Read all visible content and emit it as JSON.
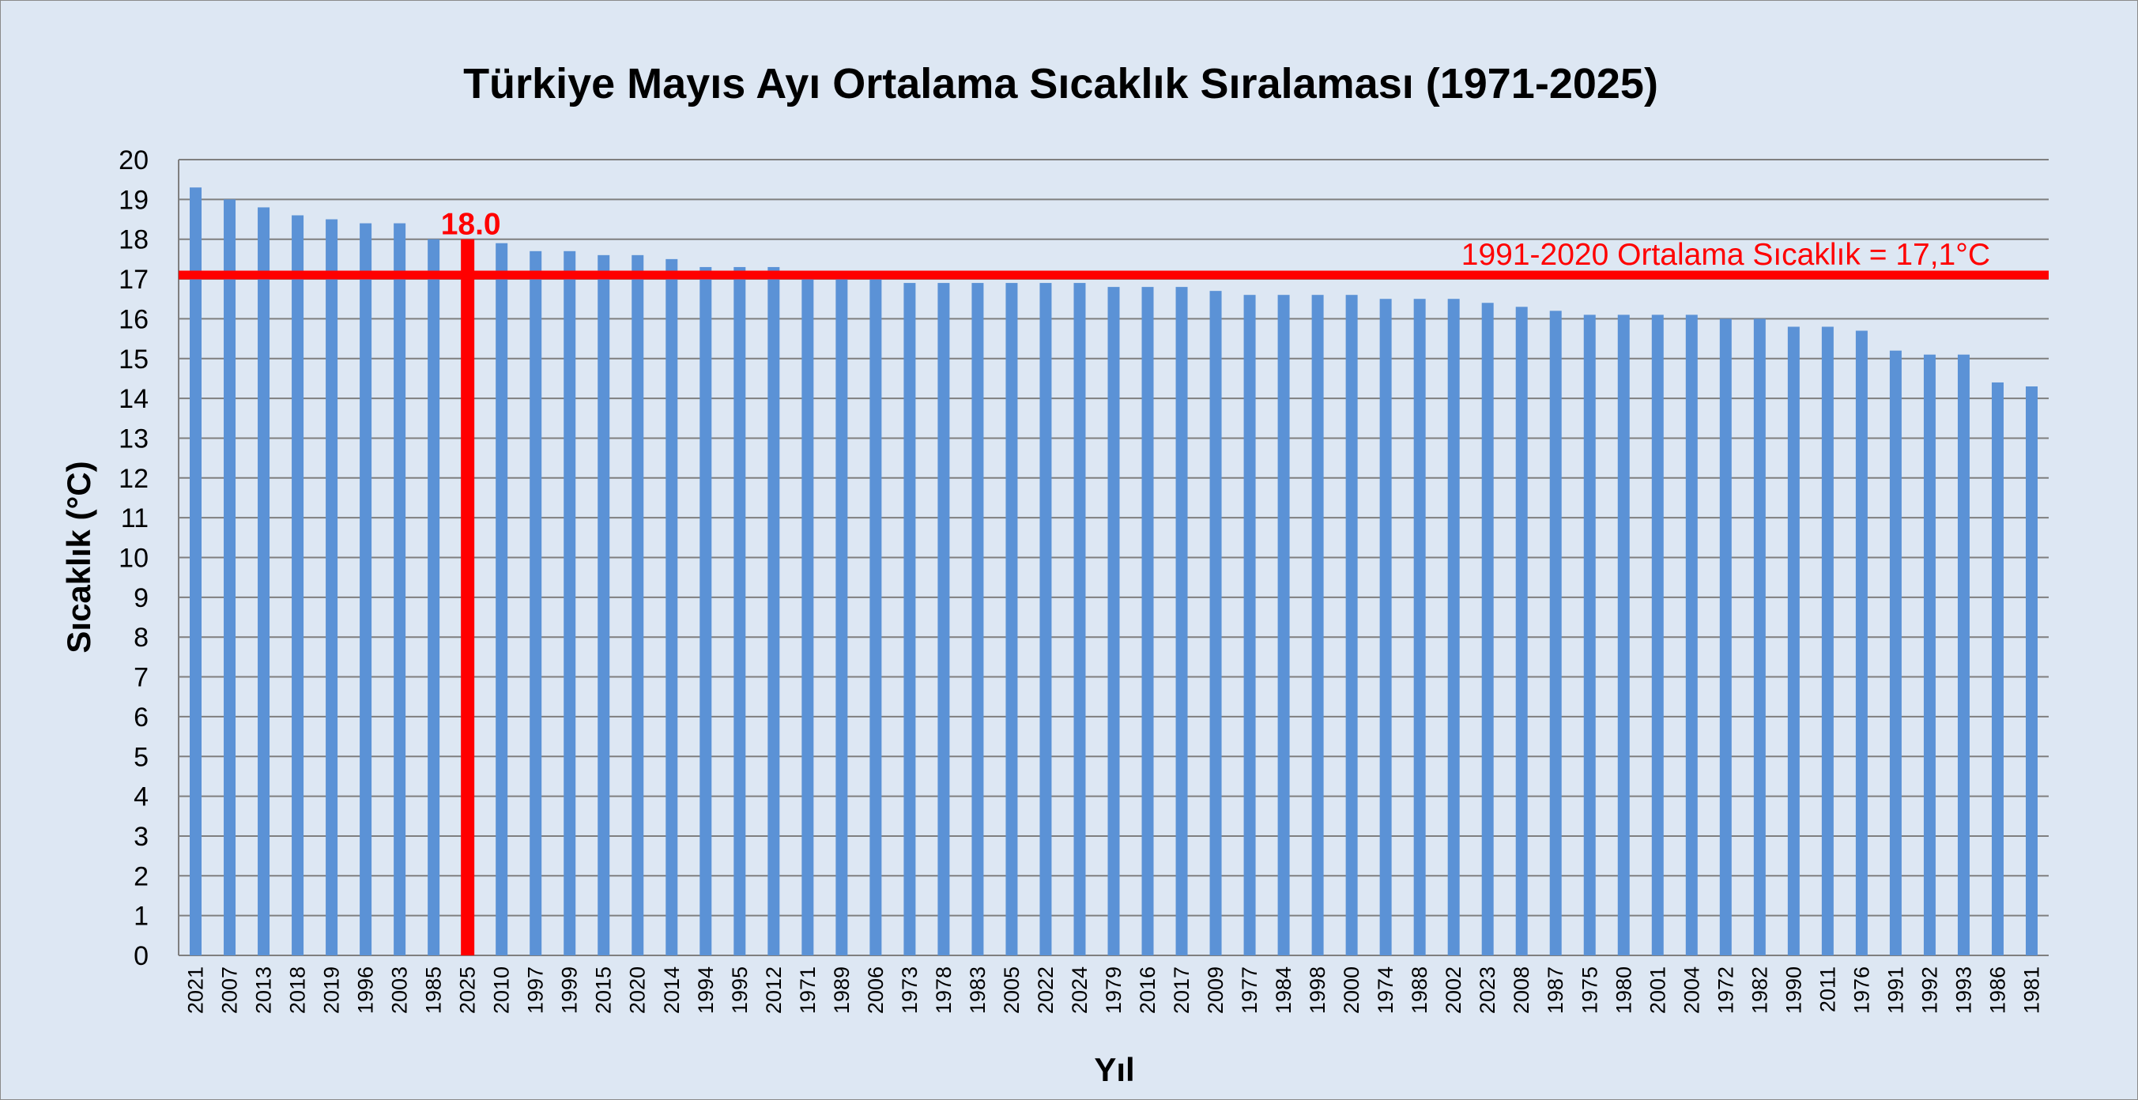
{
  "chart_data": {
    "type": "bar",
    "title": "Türkiye Mayıs Ayı Ortalama Sıcaklık Sıralaması (1971-2025)",
    "xlabel": "Yıl",
    "ylabel": "Sıcaklık (°C)",
    "ylim": [
      0,
      20
    ],
    "yticks": [
      0,
      1,
      2,
      3,
      4,
      5,
      6,
      7,
      8,
      9,
      10,
      11,
      12,
      13,
      14,
      15,
      16,
      17,
      18,
      19,
      20
    ],
    "grid": true,
    "legend": "none",
    "categories": [
      "2021",
      "2007",
      "2013",
      "2018",
      "2019",
      "1996",
      "2003",
      "1985",
      "2025",
      "2010",
      "1997",
      "1999",
      "2015",
      "2020",
      "2014",
      "1994",
      "1995",
      "2012",
      "1971",
      "1989",
      "2006",
      "1973",
      "1978",
      "1983",
      "2005",
      "2022",
      "2024",
      "1979",
      "2016",
      "2017",
      "2009",
      "1977",
      "1984",
      "1998",
      "2000",
      "1974",
      "1988",
      "2002",
      "2023",
      "2008",
      "1987",
      "1975",
      "1980",
      "2001",
      "2004",
      "1972",
      "1982",
      "1990",
      "2011",
      "1976",
      "1991",
      "1992",
      "1993",
      "1986",
      "1981"
    ],
    "values": [
      19.3,
      19.0,
      18.8,
      18.6,
      18.5,
      18.4,
      18.4,
      18.0,
      18.0,
      17.9,
      17.7,
      17.7,
      17.6,
      17.6,
      17.5,
      17.3,
      17.3,
      17.3,
      17.1,
      17.0,
      17.0,
      16.9,
      16.9,
      16.9,
      16.9,
      16.9,
      16.9,
      16.8,
      16.8,
      16.8,
      16.7,
      16.6,
      16.6,
      16.6,
      16.6,
      16.5,
      16.5,
      16.5,
      16.4,
      16.3,
      16.2,
      16.1,
      16.1,
      16.1,
      16.1,
      16.0,
      16.0,
      15.8,
      15.8,
      15.7,
      15.2,
      15.1,
      15.1,
      14.4,
      14.3
    ],
    "bar_color": "#5b92d6",
    "highlight": {
      "category": "2025",
      "value": 18.0,
      "label": "18.0",
      "color": "#ff0000"
    },
    "reference_line": {
      "value": 17.1,
      "label": "1991-2020 Ortalama Sıcaklık = 17,1°C",
      "color": "#ff0000"
    }
  }
}
